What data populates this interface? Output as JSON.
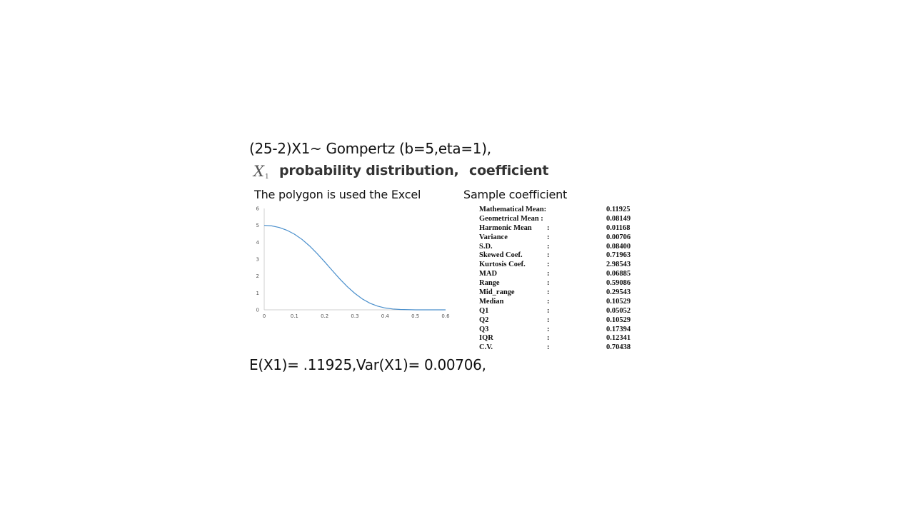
{
  "header": {
    "title": "(25-2)X1~ Gompertz (b=5,eta=1),",
    "x_symbol": "X",
    "x_subscript": "1",
    "prob_label": "probability distribution,",
    "coef_label": "coefficient"
  },
  "left_panel": {
    "label": "The polygon is used the Excel"
  },
  "right_panel": {
    "label": "Sample coefficient",
    "stats": [
      {
        "name": "Mathematical Mean:",
        "colon": "",
        "value": "0.11925"
      },
      {
        "name": "Geometrical Mean :",
        "colon": "",
        "value": "0.08149"
      },
      {
        "name": "Harmonic Mean",
        "colon": ":",
        "value": "0.01168"
      },
      {
        "name": "Variance",
        "colon": ":",
        "value": "0.00706"
      },
      {
        "name": "S.D.",
        "colon": ":",
        "value": "0.08400"
      },
      {
        "name": "Skewed Coef.",
        "colon": ":",
        "value": "0.71963"
      },
      {
        "name": "Kurtosis Coef.",
        "colon": ":",
        "value": "2.98543"
      },
      {
        "name": "MAD",
        "colon": ":",
        "value": "0.06885"
      },
      {
        "name": "Range",
        "colon": ":",
        "value": "0.59086"
      },
      {
        "name": "Mid_range",
        "colon": ":",
        "value": "0.29543"
      },
      {
        "name": "Median",
        "colon": ":",
        "value": "0.10529"
      },
      {
        "name": "Q1",
        "colon": ":",
        "value": "0.05052"
      },
      {
        "name": "Q2",
        "colon": ":",
        "value": "0.10529"
      },
      {
        "name": "Q3",
        "colon": ":",
        "value": "0.17394"
      },
      {
        "name": "IQR",
        "colon": ":",
        "value": "0.12341"
      },
      {
        "name": "C.V.",
        "colon": ":",
        "value": "0.70438"
      }
    ]
  },
  "footer": {
    "text": "E(X1)= .11925,Var(X1)= 0.00706,"
  },
  "chart_data": {
    "type": "line",
    "title": "",
    "xlabel": "",
    "ylabel": "",
    "xlim": [
      0,
      0.6
    ],
    "ylim": [
      0,
      6
    ],
    "x_ticks": [
      "0",
      "0.1",
      "0.2",
      "0.3",
      "0.4",
      "0.5",
      "0.6"
    ],
    "y_ticks": [
      "0",
      "1",
      "2",
      "3",
      "4",
      "5",
      "6"
    ],
    "grid": false,
    "line_color": "#4a8fcc",
    "series": [
      {
        "x": [
          0,
          0.025,
          0.05,
          0.075,
          0.1,
          0.125,
          0.15,
          0.175,
          0.2,
          0.225,
          0.25,
          0.275,
          0.3,
          0.325,
          0.35,
          0.375,
          0.4,
          0.425,
          0.45,
          0.5,
          0.55,
          0.6
        ],
        "y": [
          5.0,
          4.97,
          4.87,
          4.71,
          4.48,
          4.17,
          3.78,
          3.33,
          2.84,
          2.33,
          1.83,
          1.37,
          0.97,
          0.64,
          0.39,
          0.22,
          0.11,
          0.05,
          0.02,
          0.0,
          0.0,
          0.0
        ]
      }
    ]
  }
}
